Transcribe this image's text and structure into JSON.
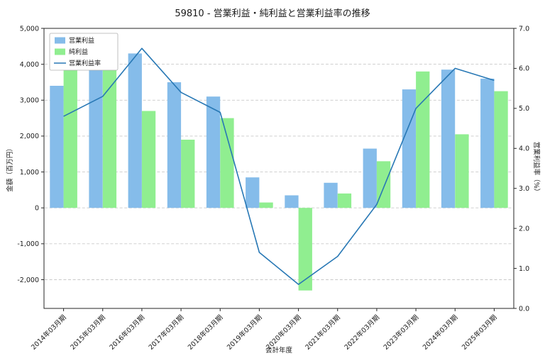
{
  "chart_data": {
    "type": "bar+line",
    "title": "59810 - 営業利益・純利益と営業利益率の推移",
    "categories": [
      "2014年03月期",
      "2015年03月期",
      "2016年03月期",
      "2017年03月期",
      "2018年03月期",
      "2019年03月期",
      "2020年03月期",
      "2021年03月期",
      "2022年03月期",
      "2023年03月期",
      "2024年03月期",
      "2025年03月期"
    ],
    "bar_series": [
      {
        "name": "営業利益",
        "color": "#85BCEA",
        "values": [
          3400,
          3950,
          4300,
          3500,
          3100,
          850,
          350,
          700,
          1650,
          3300,
          3850,
          3600
        ]
      },
      {
        "name": "純利益",
        "color": "#90EE90",
        "values": [
          4200,
          3850,
          2700,
          1900,
          2500,
          150,
          -2300,
          400,
          1300,
          3800,
          2050,
          3250
        ]
      }
    ],
    "line_series": {
      "name": "営業利益率",
      "color": "#2878B5",
      "values": [
        4.8,
        5.3,
        6.5,
        5.4,
        4.9,
        1.4,
        0.6,
        1.3,
        2.6,
        5.0,
        6.0,
        5.7
      ]
    },
    "xlabel": "会計年度",
    "ylabel_left": "金額（百万円）",
    "ylabel_right": "営業利益率（%）",
    "ylim_left": [
      -2800,
      5000
    ],
    "ylim_right": [
      0.0,
      7.0
    ],
    "yticks_left": [
      5000,
      4000,
      3000,
      2000,
      1000,
      0,
      -1000,
      -2000
    ],
    "yticks_right": [
      7.0,
      6.0,
      5.0,
      4.0,
      3.0,
      2.0,
      1.0,
      0.0
    ],
    "grid": true,
    "grid_style": "dashed",
    "legend_position": "upper-left",
    "legend_labels": [
      "営業利益",
      "純利益",
      "営業利益率"
    ]
  }
}
